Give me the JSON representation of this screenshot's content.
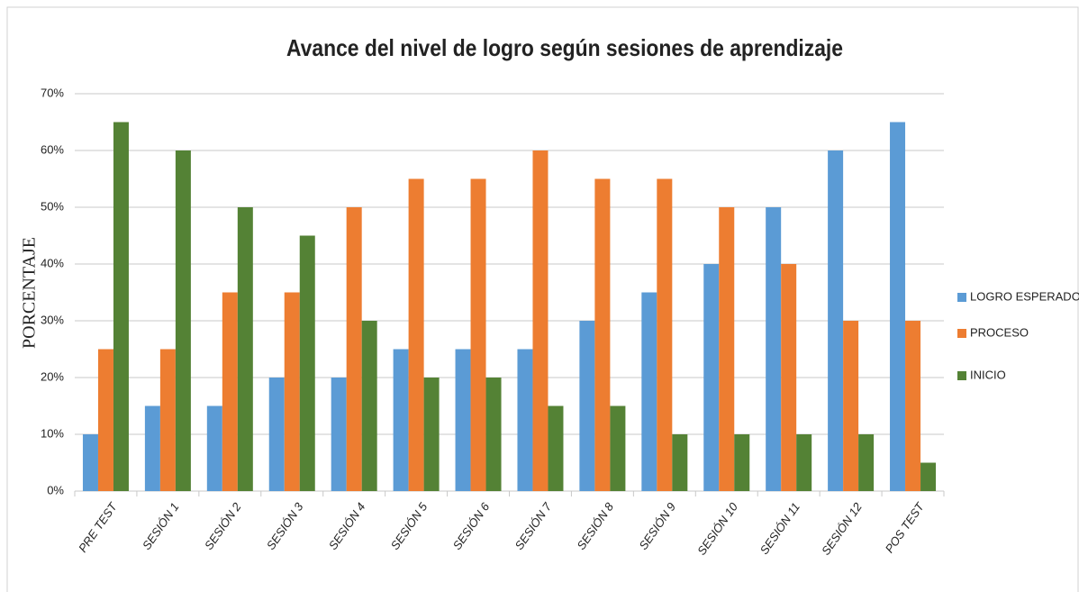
{
  "chart_data": {
    "type": "bar",
    "title": "Avance del nivel de logro según sesiones de aprendizaje",
    "y_label": "PORCENTAJE",
    "categories": [
      "PRE TEST",
      "SESIÓN 1",
      "SESIÓN 2",
      "SESIÓN 3",
      "SESIÓN 4",
      "SESIÓN 5",
      "SESIÓN 6",
      "SESIÓN 7",
      "SESIÓN 8",
      "SESIÓN 9",
      "SESIÓN 10",
      "SESIÓN 11",
      "SESIÓN 12",
      "POS TEST"
    ],
    "series": [
      {
        "name": "LOGRO ESPERADO",
        "color": "#5b9bd5",
        "values": [
          10,
          15,
          15,
          20,
          20,
          25,
          25,
          25,
          30,
          35,
          40,
          50,
          60,
          65
        ]
      },
      {
        "name": "PROCESO",
        "color": "#ed7d31",
        "values": [
          25,
          25,
          35,
          35,
          50,
          55,
          55,
          60,
          55,
          55,
          50,
          40,
          30,
          30
        ]
      },
      {
        "name": "INICIO",
        "color": "#548235",
        "values": [
          65,
          60,
          50,
          45,
          30,
          20,
          20,
          15,
          15,
          10,
          10,
          10,
          10,
          5
        ]
      }
    ],
    "ylim": [
      0,
      70
    ],
    "yticks": [
      {
        "value": 0,
        "label": "0%"
      },
      {
        "value": 10,
        "label": "10%"
      },
      {
        "value": 20,
        "label": "20%"
      },
      {
        "value": 30,
        "label": "30%"
      },
      {
        "value": 40,
        "label": "40%"
      },
      {
        "value": 50,
        "label": "50%"
      },
      {
        "value": 60,
        "label": "60%"
      },
      {
        "value": 70,
        "label": "70%"
      }
    ],
    "grid": true,
    "legend": "right"
  }
}
